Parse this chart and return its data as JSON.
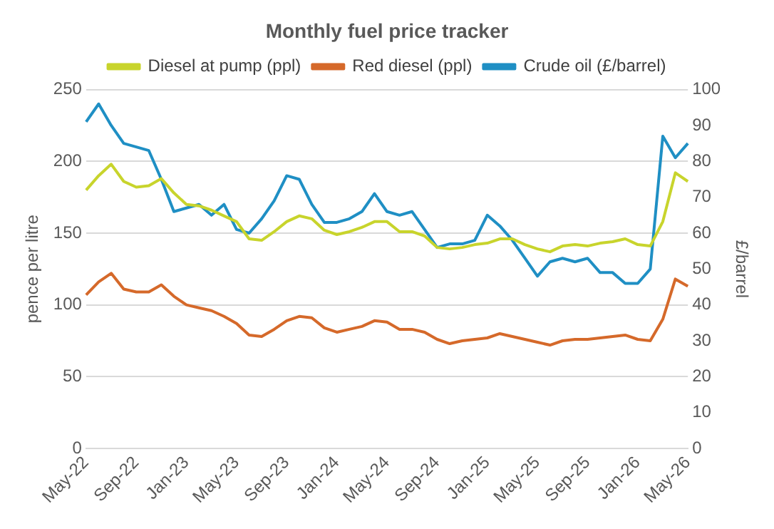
{
  "chart_data": {
    "type": "line",
    "title": "Monthly fuel price tracker",
    "ylabel": "pence per litre",
    "y2label": "£/barrel",
    "categories": [
      "May-22",
      null,
      null,
      null,
      "Sep-22",
      null,
      null,
      null,
      "Jan-23",
      null,
      null,
      null,
      "May-23",
      null,
      null,
      null,
      "Sep-23",
      null,
      null,
      null,
      "Jan-24",
      null,
      null,
      null,
      "May-24",
      null,
      null,
      null,
      "Sep-24",
      null,
      null,
      null,
      "Jan-25",
      null,
      null,
      null,
      "May-25",
      null,
      null,
      null,
      "Sep-25",
      null,
      null,
      null,
      "Jan-26",
      null,
      null,
      null,
      "May-26"
    ],
    "series": [
      {
        "name": "Diesel at pump (ppl)",
        "color": "#c8d42c",
        "values": [
          180,
          190,
          198,
          186,
          182,
          183,
          188,
          178,
          170,
          169,
          166,
          162,
          158,
          146,
          145,
          151,
          158,
          162,
          160,
          152,
          149,
          151,
          154,
          158,
          158,
          151,
          151,
          148,
          140,
          139,
          140,
          142,
          143,
          146,
          146,
          142,
          139,
          137,
          141,
          142,
          141,
          143,
          144,
          146,
          142,
          141,
          158,
          192,
          186
        ]
      },
      {
        "name": "Red diesel (ppl)",
        "color": "#d5692a",
        "values": [
          107,
          116,
          122,
          111,
          109,
          109,
          114,
          106,
          100,
          98,
          96,
          92,
          87,
          79,
          78,
          83,
          89,
          92,
          91,
          84,
          81,
          83,
          85,
          89,
          88,
          83,
          83,
          81,
          76,
          73,
          75,
          76,
          77,
          80,
          78,
          76,
          74,
          72,
          75,
          76,
          76,
          77,
          78,
          79,
          76,
          75,
          90,
          118,
          113
        ]
      },
      {
        "name": "Crude oil (£/barrel)",
        "color": "#1f8fc4",
        "axis": "y2",
        "values": [
          91,
          96,
          90,
          85,
          84,
          83,
          75,
          66,
          67,
          68,
          65,
          68,
          61,
          60,
          64,
          69,
          76,
          75,
          68,
          63,
          63,
          64,
          66,
          71,
          66,
          65,
          66,
          61,
          56,
          57,
          57,
          58,
          65,
          62,
          58,
          53,
          48,
          52,
          53,
          52,
          53,
          49,
          49,
          46,
          46,
          50,
          87,
          81,
          85
        ]
      }
    ],
    "ylim": [
      0,
      250
    ],
    "yticks": [
      0,
      50,
      100,
      150,
      200,
      250
    ],
    "y2lim": [
      0,
      100
    ],
    "y2ticks": [
      0,
      10,
      20,
      30,
      40,
      50,
      60,
      70,
      80,
      90,
      100
    ],
    "grid": "y",
    "legend": "top",
    "marker": "none",
    "line_style": "solid"
  }
}
